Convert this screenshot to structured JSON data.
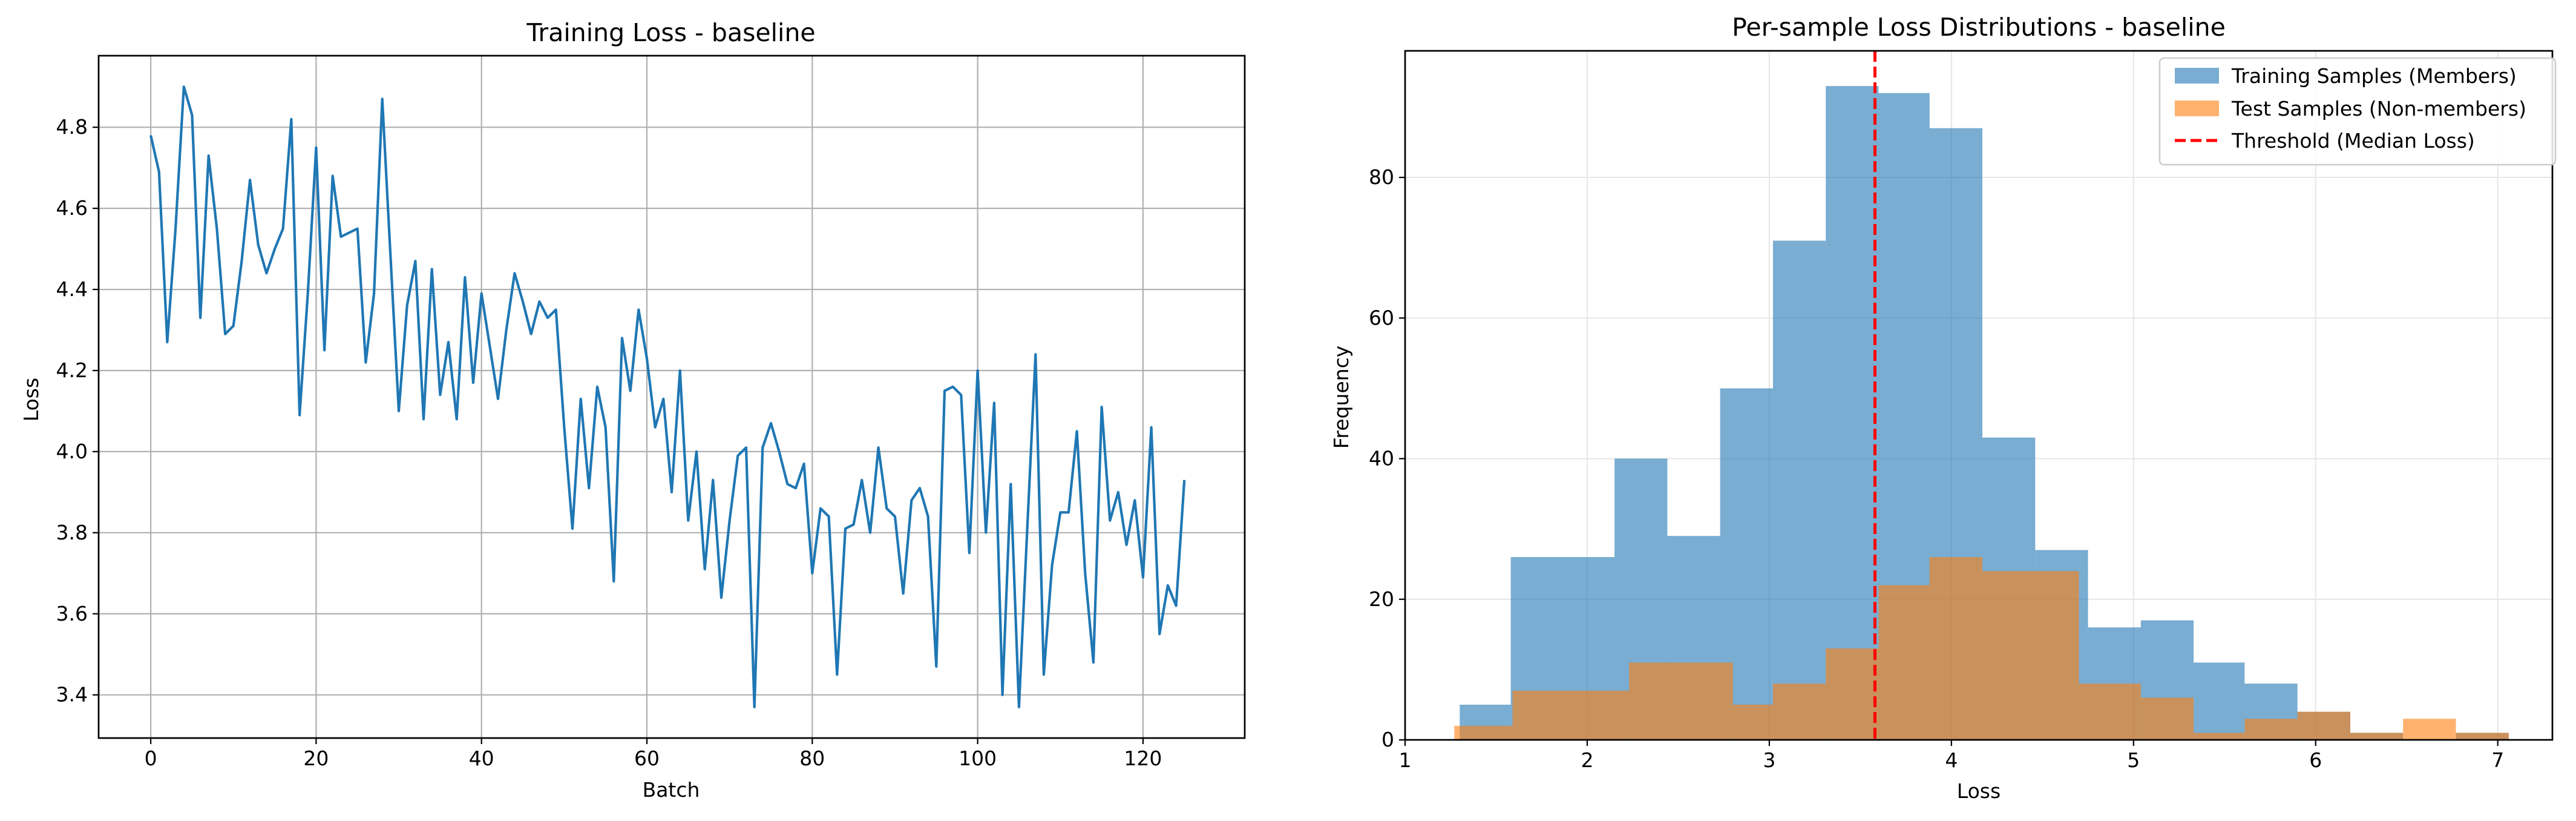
{
  "chart_data": [
    {
      "type": "line",
      "title": "Training Loss - baseline",
      "xlabel": "Batch",
      "ylabel": "Loss",
      "xlim": [
        -6.3,
        132.3
      ],
      "ylim": [
        3.2935,
        4.9765
      ],
      "xticks": [
        0,
        20,
        40,
        60,
        80,
        100,
        120
      ],
      "yticks": [
        3.4,
        3.6,
        3.8,
        4.0,
        4.2,
        4.4,
        4.6,
        4.8
      ],
      "xtick_labels": [
        "0",
        "20",
        "40",
        "60",
        "80",
        "100",
        "120"
      ],
      "ytick_labels": [
        "3.4",
        "3.6",
        "3.8",
        "4.0",
        "4.2",
        "4.4",
        "4.6",
        "4.8"
      ],
      "grid": true,
      "color": "#1f77b4",
      "series": [
        {
          "values": [
            4.78,
            4.69,
            4.27,
            4.55,
            4.9,
            4.83,
            4.33,
            4.73,
            4.55,
            4.29,
            4.31,
            4.47,
            4.67,
            4.51,
            4.44,
            4.5,
            4.55,
            4.82,
            4.09,
            4.39,
            4.75,
            4.25,
            4.68,
            4.53,
            4.54,
            4.55,
            4.22,
            4.39,
            4.87,
            4.48,
            4.1,
            4.36,
            4.47,
            4.08,
            4.45,
            4.14,
            4.27,
            4.08,
            4.43,
            4.17,
            4.39,
            4.26,
            4.13,
            4.3,
            4.44,
            4.37,
            4.29,
            4.37,
            4.33,
            4.35,
            4.06,
            3.81,
            4.13,
            3.91,
            4.16,
            4.06,
            3.68,
            4.28,
            4.15,
            4.35,
            4.23,
            4.06,
            4.13,
            3.9,
            4.2,
            3.83,
            4.0,
            3.71,
            3.93,
            3.64,
            3.83,
            3.99,
            4.01,
            3.37,
            4.01,
            4.07,
            4.0,
            3.92,
            3.91,
            3.97,
            3.7,
            3.86,
            3.84,
            3.45,
            3.81,
            3.82,
            3.93,
            3.8,
            4.01,
            3.86,
            3.84,
            3.65,
            3.88,
            3.91,
            3.84,
            3.47,
            4.15,
            4.16,
            4.14,
            3.75,
            4.2,
            3.8,
            4.12,
            3.4,
            3.92,
            3.37,
            3.81,
            4.24,
            3.45,
            3.72,
            3.85,
            3.85,
            4.05,
            3.7,
            3.48,
            4.11,
            3.83,
            3.9,
            3.77,
            3.88,
            3.69,
            4.06,
            3.55,
            3.67,
            3.62,
            3.93
          ]
        }
      ]
    },
    {
      "type": "histogram",
      "title": "Per-sample Loss Distributions - baseline",
      "xlabel": "Loss",
      "ylabel": "Frequency",
      "xlim": [
        1.0,
        7.3
      ],
      "ylim": [
        0,
        98
      ],
      "xticks": [
        1,
        2,
        3,
        4,
        5,
        6,
        7
      ],
      "yticks": [
        0,
        20,
        40,
        60,
        80
      ],
      "xtick_labels": [
        "1",
        "2",
        "3",
        "4",
        "5",
        "6",
        "7"
      ],
      "ytick_labels": [
        "0",
        "20",
        "40",
        "60",
        "80"
      ],
      "grid": true,
      "legend_position": "upper right",
      "series": [
        {
          "name": "Training Samples (Members)",
          "color": "#1f77b4",
          "opacity": 0.6,
          "bins": [
            [
              1.3,
              1.58,
              5
            ],
            [
              1.58,
              2.15,
              26
            ],
            [
              2.15,
              2.44,
              40
            ],
            [
              2.44,
              2.73,
              29
            ],
            [
              2.73,
              3.02,
              50
            ],
            [
              3.02,
              3.31,
              71
            ],
            [
              3.31,
              3.6,
              93
            ],
            [
              3.6,
              3.88,
              92
            ],
            [
              3.88,
              4.17,
              87
            ],
            [
              4.17,
              4.46,
              43
            ],
            [
              4.46,
              4.75,
              27
            ],
            [
              4.75,
              5.04,
              16
            ],
            [
              5.04,
              5.33,
              17
            ],
            [
              5.33,
              5.61,
              11
            ],
            [
              5.61,
              5.9,
              8
            ],
            [
              5.9,
              6.19,
              4
            ],
            [
              6.19,
              6.48,
              1
            ],
            [
              6.48,
              6.77,
              0
            ],
            [
              6.77,
              7.06,
              1
            ]
          ]
        },
        {
          "name": "Test Samples (Non-members)",
          "color": "#ff7f0e",
          "opacity": 0.6,
          "bins": [
            [
              1.27,
              1.59,
              2
            ],
            [
              1.59,
              2.23,
              7
            ],
            [
              2.23,
              2.8,
              11
            ],
            [
              2.8,
              3.02,
              5
            ],
            [
              3.02,
              3.31,
              8
            ],
            [
              3.31,
              3.6,
              13
            ],
            [
              3.6,
              3.88,
              22
            ],
            [
              3.88,
              4.17,
              26
            ],
            [
              4.17,
              4.7,
              24
            ],
            [
              4.7,
              5.04,
              8
            ],
            [
              5.04,
              5.33,
              6
            ],
            [
              5.33,
              5.61,
              1
            ],
            [
              5.61,
              5.9,
              3
            ],
            [
              5.9,
              6.19,
              4
            ],
            [
              6.19,
              6.48,
              1
            ],
            [
              6.48,
              6.77,
              3
            ],
            [
              6.77,
              7.06,
              1
            ]
          ]
        }
      ],
      "threshold": {
        "name": "Threshold (Median Loss)",
        "value": 3.58,
        "color": "#ff0000",
        "style": "dashed"
      }
    }
  ]
}
